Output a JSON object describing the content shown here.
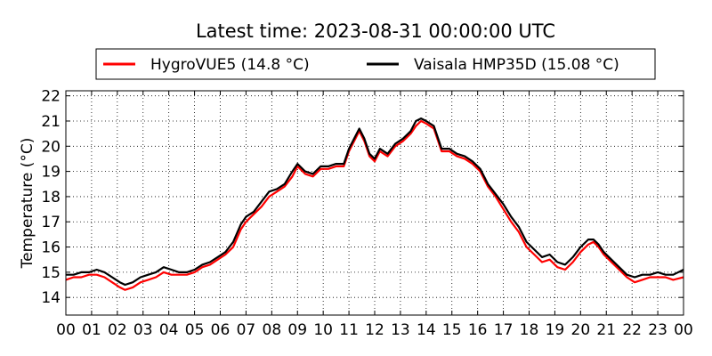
{
  "chart_data": {
    "type": "line",
    "title": "Latest time: 2023-08-31 00:00:00 UTC",
    "ylabel": "Temperature (°C)",
    "xlabel": "",
    "xlim": [
      0,
      24
    ],
    "ylim": [
      13.3,
      22.2
    ],
    "yticks": [
      14,
      15,
      16,
      17,
      18,
      19,
      20,
      21,
      22
    ],
    "xticks": [
      "00",
      "01",
      "02",
      "03",
      "04",
      "05",
      "06",
      "07",
      "08",
      "09",
      "10",
      "11",
      "12",
      "13",
      "14",
      "15",
      "16",
      "17",
      "18",
      "19",
      "20",
      "21",
      "22",
      "23",
      "00"
    ],
    "grid": true,
    "legend_position": "top",
    "series": [
      {
        "name": "HygroVUE5 (14.8 °C)",
        "color": "#ff0000",
        "x": [
          0,
          0.3,
          0.6,
          0.9,
          1.2,
          1.5,
          1.8,
          2.1,
          2.3,
          2.6,
          2.9,
          3.2,
          3.5,
          3.8,
          4.1,
          4.4,
          4.7,
          5.0,
          5.3,
          5.6,
          5.9,
          6.2,
          6.5,
          6.8,
          7.0,
          7.3,
          7.6,
          7.9,
          8.2,
          8.5,
          8.8,
          9.0,
          9.3,
          9.6,
          9.9,
          10.2,
          10.5,
          10.8,
          11.0,
          11.2,
          11.4,
          11.6,
          11.8,
          12.0,
          12.2,
          12.5,
          12.8,
          13.1,
          13.4,
          13.6,
          13.8,
          14.0,
          14.3,
          14.6,
          14.9,
          15.2,
          15.5,
          15.8,
          16.1,
          16.4,
          16.7,
          17.0,
          17.3,
          17.6,
          17.9,
          18.2,
          18.5,
          18.8,
          19.1,
          19.4,
          19.7,
          20.0,
          20.3,
          20.5,
          20.7,
          20.9,
          21.2,
          21.5,
          21.8,
          22.1,
          22.4,
          22.7,
          23.0,
          23.3,
          23.6,
          24.0
        ],
        "values": [
          14.7,
          14.8,
          14.8,
          14.9,
          14.9,
          14.8,
          14.6,
          14.4,
          14.3,
          14.4,
          14.6,
          14.7,
          14.8,
          15.0,
          14.9,
          14.9,
          14.9,
          15.0,
          15.2,
          15.3,
          15.5,
          15.7,
          16.0,
          16.7,
          17.0,
          17.3,
          17.6,
          18.0,
          18.2,
          18.4,
          18.8,
          19.2,
          18.9,
          18.8,
          19.1,
          19.1,
          19.2,
          19.2,
          19.8,
          20.2,
          20.6,
          20.2,
          19.6,
          19.4,
          19.8,
          19.6,
          20.0,
          20.2,
          20.5,
          20.8,
          21.0,
          20.9,
          20.7,
          19.8,
          19.8,
          19.6,
          19.5,
          19.3,
          19.0,
          18.4,
          18.0,
          17.5,
          17.0,
          16.6,
          16.0,
          15.7,
          15.4,
          15.5,
          15.2,
          15.1,
          15.4,
          15.8,
          16.1,
          16.2,
          16.0,
          15.7,
          15.4,
          15.1,
          14.8,
          14.6,
          14.7,
          14.8,
          14.8,
          14.8,
          14.7,
          14.8
        ]
      },
      {
        "name": "Vaisala HMP35D (15.08 °C)",
        "color": "#000000",
        "x": [
          0,
          0.3,
          0.6,
          0.9,
          1.2,
          1.5,
          1.8,
          2.1,
          2.3,
          2.6,
          2.9,
          3.2,
          3.5,
          3.8,
          4.1,
          4.4,
          4.7,
          5.0,
          5.3,
          5.6,
          5.9,
          6.2,
          6.5,
          6.8,
          7.0,
          7.3,
          7.6,
          7.9,
          8.2,
          8.5,
          8.8,
          9.0,
          9.3,
          9.6,
          9.9,
          10.2,
          10.5,
          10.8,
          11.0,
          11.2,
          11.4,
          11.6,
          11.8,
          12.0,
          12.2,
          12.5,
          12.8,
          13.1,
          13.4,
          13.6,
          13.8,
          14.0,
          14.3,
          14.6,
          14.9,
          15.2,
          15.5,
          15.8,
          16.1,
          16.4,
          16.7,
          17.0,
          17.3,
          17.6,
          17.9,
          18.2,
          18.5,
          18.8,
          19.1,
          19.4,
          19.7,
          20.0,
          20.3,
          20.5,
          20.7,
          20.9,
          21.2,
          21.5,
          21.8,
          22.1,
          22.4,
          22.7,
          23.0,
          23.3,
          23.6,
          24.0
        ],
        "values": [
          14.9,
          14.9,
          15.0,
          15.0,
          15.1,
          15.0,
          14.8,
          14.6,
          14.5,
          14.6,
          14.8,
          14.9,
          15.0,
          15.2,
          15.1,
          15.0,
          15.0,
          15.1,
          15.3,
          15.4,
          15.6,
          15.8,
          16.2,
          16.9,
          17.2,
          17.4,
          17.8,
          18.2,
          18.3,
          18.5,
          19.0,
          19.3,
          19.0,
          18.9,
          19.2,
          19.2,
          19.3,
          19.3,
          19.9,
          20.3,
          20.7,
          20.3,
          19.7,
          19.5,
          19.9,
          19.7,
          20.1,
          20.3,
          20.6,
          21.0,
          21.1,
          21.0,
          20.8,
          19.9,
          19.9,
          19.7,
          19.6,
          19.4,
          19.1,
          18.5,
          18.1,
          17.7,
          17.2,
          16.8,
          16.2,
          15.9,
          15.6,
          15.7,
          15.4,
          15.3,
          15.6,
          16.0,
          16.3,
          16.3,
          16.1,
          15.8,
          15.5,
          15.2,
          14.9,
          14.8,
          14.9,
          14.9,
          15.0,
          14.9,
          14.9,
          15.1
        ]
      }
    ]
  }
}
